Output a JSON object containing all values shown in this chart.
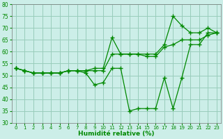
{
  "xlabel": "Humidité relative (%)",
  "bg_color": "#cceee8",
  "grid_color": "#99ccbb",
  "line_color": "#008800",
  "xlim": [
    0,
    23
  ],
  "ylim": [
    30,
    80
  ],
  "yticks": [
    30,
    35,
    40,
    45,
    50,
    55,
    60,
    65,
    70,
    75,
    80
  ],
  "xticks": [
    0,
    1,
    2,
    3,
    4,
    5,
    6,
    7,
    8,
    9,
    10,
    11,
    12,
    13,
    14,
    15,
    16,
    17,
    18,
    19,
    20,
    21,
    22,
    23
  ],
  "series": {
    "line_max": [
      53,
      52,
      51,
      51,
      51,
      51,
      52,
      52,
      52,
      53,
      53,
      66,
      59,
      59,
      59,
      59,
      59,
      63,
      75,
      71,
      68,
      68,
      70,
      68
    ],
    "line_avg": [
      53,
      52,
      51,
      51,
      51,
      51,
      52,
      52,
      52,
      52,
      52,
      59,
      59,
      59,
      59,
      58,
      58,
      62,
      63,
      65,
      65,
      65,
      67,
      68
    ],
    "line_min": [
      53,
      52,
      51,
      51,
      51,
      51,
      52,
      52,
      51,
      46,
      47,
      53,
      53,
      35,
      36,
      36,
      36,
      49,
      36,
      49,
      63,
      63,
      68,
      68
    ]
  }
}
